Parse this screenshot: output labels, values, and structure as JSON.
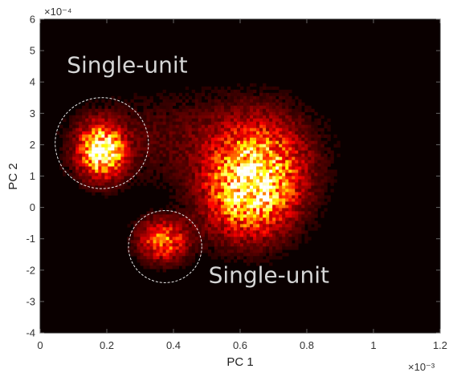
{
  "chart_data": {
    "type": "heatmap",
    "title": "",
    "xlabel": "PC 1",
    "ylabel": "PC 2",
    "x_exponent_label": "×10⁻³",
    "y_exponent_label": "×10⁻⁴",
    "xlim": [
      0,
      1.2
    ],
    "ylim": [
      -4,
      6
    ],
    "x_ticks": [
      "0",
      "0.2",
      "0.4",
      "0.6",
      "0.8",
      "1",
      "1.2"
    ],
    "y_ticks": [
      "-4",
      "-3",
      "-2",
      "-1",
      "0",
      "1",
      "2",
      "3",
      "4",
      "5",
      "6"
    ],
    "grid": false,
    "colormap": "hot",
    "background_color": "#0a0000",
    "density_clusters": [
      {
        "x": 0.185,
        "y": 1.8,
        "sx": 0.045,
        "sy": 0.55,
        "peak": 1.0
      },
      {
        "x": 0.655,
        "y": 1.0,
        "sx": 0.09,
        "sy": 1.1,
        "peak": 0.72
      },
      {
        "x": 0.6,
        "y": 0.3,
        "sx": 0.08,
        "sy": 0.9,
        "peak": 0.35
      },
      {
        "x": 0.37,
        "y": -1.05,
        "sx": 0.05,
        "sy": 0.45,
        "peak": 0.55
      },
      {
        "x": 0.45,
        "y": 2.2,
        "sx": 0.25,
        "sy": 1.0,
        "peak": 0.12
      }
    ],
    "annotations": [
      {
        "text": "Single-unit",
        "x": 0.08,
        "y": 4.3
      },
      {
        "text": "Single-unit",
        "x": 0.505,
        "y": -2.4
      }
    ],
    "circles": [
      {
        "cx": 0.185,
        "cy": 2.05,
        "rx": 0.14,
        "ry": 1.45
      },
      {
        "cx": 0.375,
        "cy": -1.25,
        "rx": 0.11,
        "ry": 1.15
      }
    ]
  }
}
